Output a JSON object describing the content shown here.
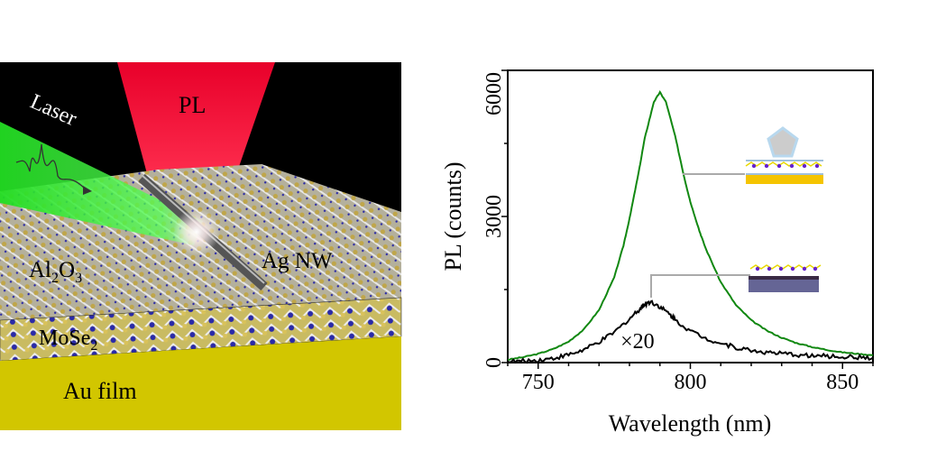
{
  "illustration": {
    "labels": {
      "laser": "Laser",
      "pl": "PL",
      "al2o3_main": "Al",
      "al2o3_sub1": "2",
      "al2o3_mid": "O",
      "al2o3_sub2": "3",
      "ag_nw": "Ag NW",
      "mose2_main": "MoSe",
      "mose2_sub": "2",
      "au_film": "Au film"
    },
    "colors": {
      "background": "#000000",
      "pl_beam": "#e8002a",
      "laser_beam": "#22dd22",
      "au_film": "#d2c600",
      "lattice": "#b9b39a",
      "mo_atom": "#2a2aa8",
      "nanowire": "#555555"
    }
  },
  "chart_data": {
    "type": "line",
    "xlabel": "Wavelength (nm)",
    "ylabel": "PL (counts)",
    "xlim": [
      740,
      860
    ],
    "ylim": [
      0,
      6000
    ],
    "xticks": [
      750,
      800,
      850
    ],
    "yticks": [
      0,
      3000,
      6000
    ],
    "grid": false,
    "annotations": [
      {
        "text": "×20",
        "x": 783,
        "y": 300
      }
    ],
    "series": [
      {
        "color": "#118811",
        "x": [
          740,
          745,
          750,
          755,
          760,
          765,
          770,
          775,
          778,
          780,
          783,
          785,
          788,
          790,
          792,
          795,
          798,
          800,
          803,
          805,
          810,
          815,
          820,
          825,
          830,
          835,
          840,
          845,
          850,
          855,
          860
        ],
        "y": [
          60,
          110,
          180,
          280,
          430,
          680,
          1080,
          1750,
          2400,
          2950,
          3900,
          4600,
          5350,
          5550,
          5350,
          4650,
          3800,
          3300,
          2700,
          2350,
          1650,
          1180,
          870,
          660,
          510,
          400,
          320,
          260,
          210,
          180,
          150
        ]
      },
      {
        "color": "#000000",
        "x": [
          740,
          745,
          750,
          755,
          760,
          765,
          770,
          775,
          780,
          783,
          785,
          787,
          790,
          793,
          795,
          800,
          805,
          810,
          815,
          820,
          825,
          830,
          835,
          840,
          845,
          850,
          855,
          860
        ],
        "y": [
          20,
          30,
          50,
          90,
          160,
          260,
          420,
          620,
          900,
          1080,
          1200,
          1250,
          1150,
          1000,
          880,
          650,
          500,
          400,
          310,
          250,
          210,
          180,
          160,
          140,
          130,
          120,
          110,
          100
        ]
      }
    ],
    "insets": [
      {
        "description_color": "#f5c400",
        "layers": [
          "Ag NW",
          "Al2O3",
          "MoSe2",
          "Au film"
        ]
      },
      {
        "description_color": "#656595",
        "layers": [
          "MoSe2",
          "substrate"
        ]
      }
    ]
  }
}
